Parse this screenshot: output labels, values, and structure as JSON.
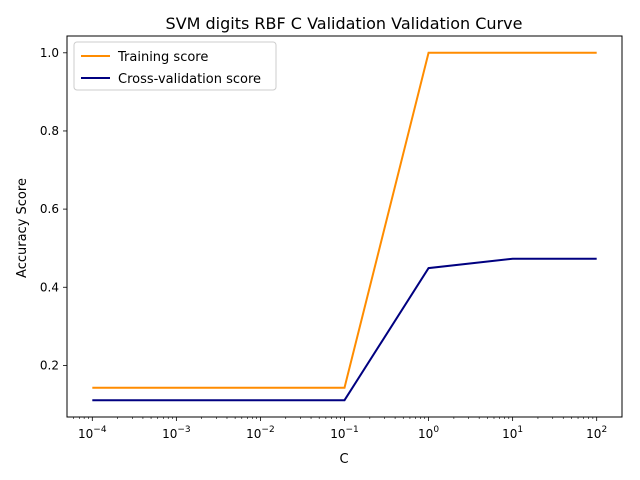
{
  "chart_data": {
    "type": "line",
    "title": "SVM digits RBF C Validation Validation Curve",
    "xlabel": "C",
    "ylabel": "Accuracy Score",
    "xscale": "log",
    "xlim": [
      5e-05,
      200
    ],
    "ylim": [
      0.068,
      1.043
    ],
    "x": [
      0.0001,
      0.001,
      0.01,
      0.1,
      1,
      10,
      100
    ],
    "xticks": [
      {
        "value": 0.0001,
        "exp": "−4"
      },
      {
        "value": 0.001,
        "exp": "−3"
      },
      {
        "value": 0.01,
        "exp": "−2"
      },
      {
        "value": 0.1,
        "exp": "−1"
      },
      {
        "value": 1,
        "exp": "0"
      },
      {
        "value": 10,
        "exp": "1"
      },
      {
        "value": 100,
        "exp": "2"
      }
    ],
    "yticks": [
      0.2,
      0.4,
      0.6,
      0.8,
      1.0
    ],
    "ytick_labels": [
      "0.2",
      "0.4",
      "0.6",
      "0.8",
      "1.0"
    ],
    "legend_position": "upper-left",
    "grid": false,
    "series": [
      {
        "name": "Training score",
        "color": "#ff8c00",
        "values": [
          0.143,
          0.143,
          0.143,
          0.143,
          1.0,
          1.0,
          1.0
        ]
      },
      {
        "name": "Cross-validation score",
        "color": "#000080",
        "values": [
          0.111,
          0.111,
          0.111,
          0.111,
          0.449,
          0.473,
          0.473
        ]
      }
    ]
  }
}
